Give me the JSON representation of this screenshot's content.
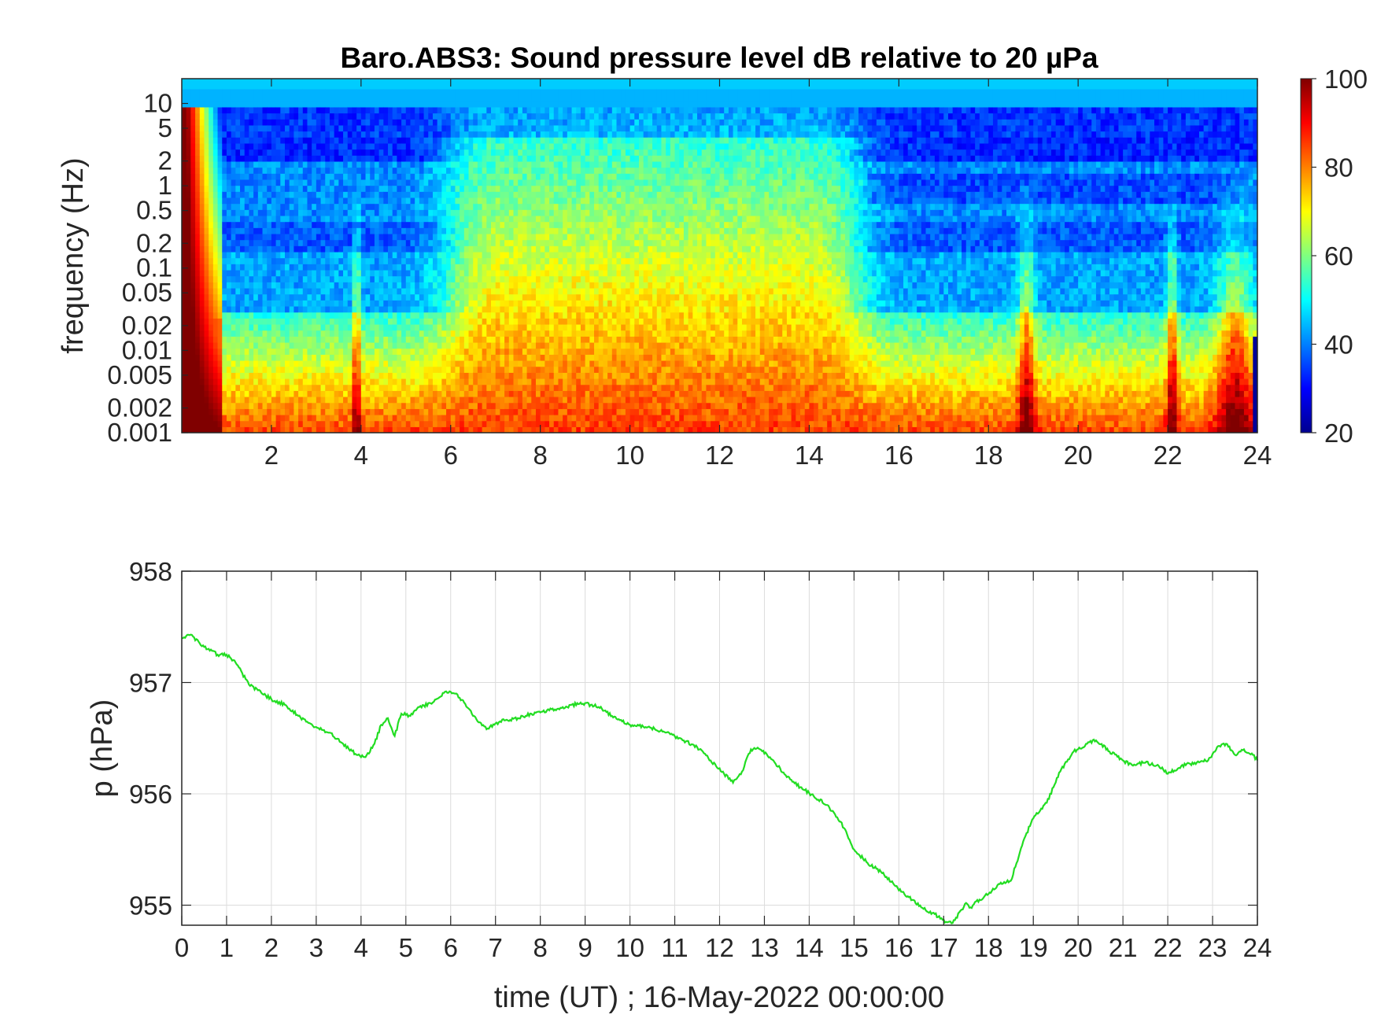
{
  "colors": {
    "axis": "#262626",
    "grid": "#dcdcdc",
    "pressure_line": "#22dd22",
    "background": "#ffffff"
  },
  "chart_data": [
    {
      "type": "heatmap",
      "title": "Baro.ABS3: Sound pressure level dB relative to 20 µPa",
      "xlabel": "",
      "ylabel": "frequency (Hz)",
      "x_ticks": [
        "2",
        "4",
        "6",
        "8",
        "10",
        "12",
        "14",
        "16",
        "18",
        "20",
        "22",
        "24"
      ],
      "x_tick_values": [
        2,
        4,
        6,
        8,
        10,
        12,
        14,
        16,
        18,
        20,
        22,
        24
      ],
      "xlim": [
        0,
        24
      ],
      "y_scale": "log",
      "ylim": [
        0.001,
        20
      ],
      "y_ticks": [
        "10",
        "5",
        "2",
        "1",
        "0.5",
        "0.2",
        "0.1",
        "0.05",
        "0.02",
        "0.01",
        "0.005",
        "0.002",
        "0.001"
      ],
      "y_tick_values": [
        10,
        5,
        2,
        1,
        0.5,
        0.2,
        0.1,
        0.05,
        0.02,
        0.01,
        0.005,
        0.002,
        0.001
      ],
      "colormap": "jet",
      "colorbar": {
        "range": [
          20,
          100
        ],
        "ticks": [
          "100",
          "80",
          "60",
          "40",
          "20"
        ],
        "tick_values": [
          100,
          80,
          60,
          40,
          20
        ]
      },
      "grid": false
    },
    {
      "type": "line",
      "title": "",
      "xlabel": "time (UT) ; 16-May-2022 00:00:00",
      "ylabel": "p (hPa)",
      "xlim": [
        0,
        24
      ],
      "ylim": [
        954.82,
        958
      ],
      "x_ticks": [
        "0",
        "1",
        "2",
        "3",
        "4",
        "5",
        "6",
        "7",
        "8",
        "9",
        "10",
        "11",
        "12",
        "13",
        "14",
        "15",
        "16",
        "17",
        "18",
        "19",
        "20",
        "21",
        "22",
        "23",
        "24"
      ],
      "y_ticks": [
        "958",
        "957",
        "956",
        "955"
      ],
      "y_tick_values": [
        958,
        957,
        956,
        955
      ],
      "grid": true,
      "series": [
        {
          "color": "#22dd22",
          "x": [
            0,
            0.2,
            0.5,
            0.8,
            1,
            1.2,
            1.5,
            2,
            2.3,
            2.6,
            3,
            3.3,
            3.6,
            3.9,
            4.1,
            4.3,
            4.45,
            4.6,
            4.75,
            4.9,
            5.1,
            5.3,
            5.6,
            5.9,
            6.1,
            6.3,
            6.5,
            6.8,
            7.1,
            7.5,
            7.8,
            8.2,
            8.6,
            8.9,
            9.3,
            9.6,
            10,
            10.4,
            10.8,
            11.2,
            11.5,
            11.8,
            12.1,
            12.3,
            12.5,
            12.7,
            12.9,
            13.2,
            13.5,
            13.8,
            14.1,
            14.4,
            14.7,
            15,
            15.3,
            15.6,
            15.9,
            16.2,
            16.5,
            16.8,
            17.05,
            17.2,
            17.4,
            17.5,
            17.6,
            17.8,
            18,
            18.2,
            18.5,
            18.8,
            19,
            19.3,
            19.6,
            19.9,
            20.2,
            20.4,
            20.7,
            21,
            21.2,
            21.5,
            21.8,
            22,
            22.3,
            22.6,
            22.9,
            23.1,
            23.3,
            23.5,
            23.7,
            23.9,
            24
          ],
          "y": [
            957.4,
            957.43,
            957.32,
            957.25,
            957.25,
            957.18,
            956.98,
            956.85,
            956.8,
            956.7,
            956.6,
            956.55,
            956.45,
            956.35,
            956.33,
            956.45,
            956.62,
            956.68,
            956.52,
            956.72,
            956.7,
            956.78,
            956.82,
            956.92,
            956.9,
            956.82,
            956.7,
            956.58,
            956.65,
            956.68,
            956.72,
            956.75,
            956.78,
            956.82,
            956.78,
            956.7,
            956.62,
            956.6,
            956.55,
            956.48,
            956.42,
            956.3,
            956.18,
            956.1,
            956.2,
            956.4,
            956.4,
            956.3,
            956.15,
            956.06,
            955.98,
            955.9,
            955.75,
            955.5,
            955.38,
            955.3,
            955.18,
            955.08,
            954.98,
            954.92,
            954.85,
            954.84,
            954.96,
            955.02,
            954.98,
            955.05,
            955.1,
            955.18,
            955.22,
            955.6,
            955.78,
            955.92,
            956.2,
            956.38,
            956.45,
            956.48,
            956.38,
            956.3,
            956.26,
            956.28,
            956.25,
            956.18,
            956.25,
            956.28,
            956.3,
            956.42,
            956.45,
            956.35,
            956.4,
            956.35,
            956.3
          ]
        }
      ]
    }
  ]
}
